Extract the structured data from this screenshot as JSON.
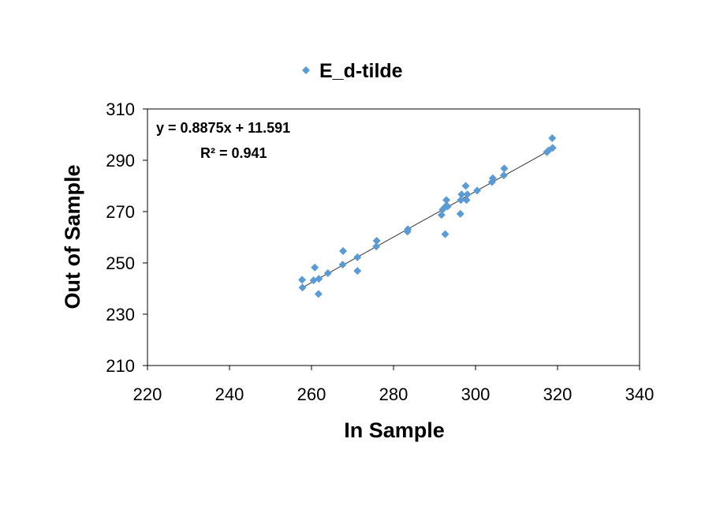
{
  "chart_data": {
    "type": "scatter",
    "title": "",
    "xlabel": "In Sample",
    "ylabel": "Out of Sample",
    "xlim": [
      220,
      340
    ],
    "ylim": [
      210,
      310
    ],
    "xticks": [
      "220",
      "240",
      "260",
      "280",
      "300",
      "320",
      "340"
    ],
    "yticks": [
      "210",
      "230",
      "250",
      "270",
      "290",
      "310"
    ],
    "grid": false,
    "legend_position": "top",
    "series": [
      {
        "name": "E_d-tilde",
        "color": "#5B9BD5",
        "marker": "diamond",
        "x": [
          257.7,
          257.8,
          260.5,
          260.8,
          261.7,
          261.8,
          264.0,
          267.6,
          267.7,
          271.2,
          271.2,
          275.8,
          275.9,
          283.4,
          283.5,
          291.7,
          292.0,
          292.6,
          292.7,
          292.9,
          293.2,
          296.3,
          296.4,
          296.6,
          297.6,
          297.8,
          298.0,
          300.4,
          304.0,
          304.2,
          306.9,
          307.0,
          317.4,
          317.8,
          318.7,
          318.8
        ],
        "y": [
          243.4,
          240.4,
          243.2,
          248.2,
          237.9,
          243.8,
          246.0,
          249.3,
          254.6,
          246.9,
          252.2,
          256.4,
          258.6,
          262.2,
          263.1,
          268.7,
          270.8,
          261.2,
          272.0,
          274.5,
          272.0,
          269.1,
          274.5,
          276.7,
          280.0,
          274.5,
          276.7,
          278.2,
          281.5,
          283.0,
          284.1,
          286.8,
          293.2,
          293.8,
          298.6,
          294.8
        ]
      }
    ],
    "trendline": {
      "type": "linear",
      "slope": 0.8875,
      "intercept": 11.591,
      "x_range": [
        257.7,
        318.8
      ],
      "equation": "y = 0.8875x + 11.591",
      "r_squared": "R² = 0.941"
    }
  }
}
